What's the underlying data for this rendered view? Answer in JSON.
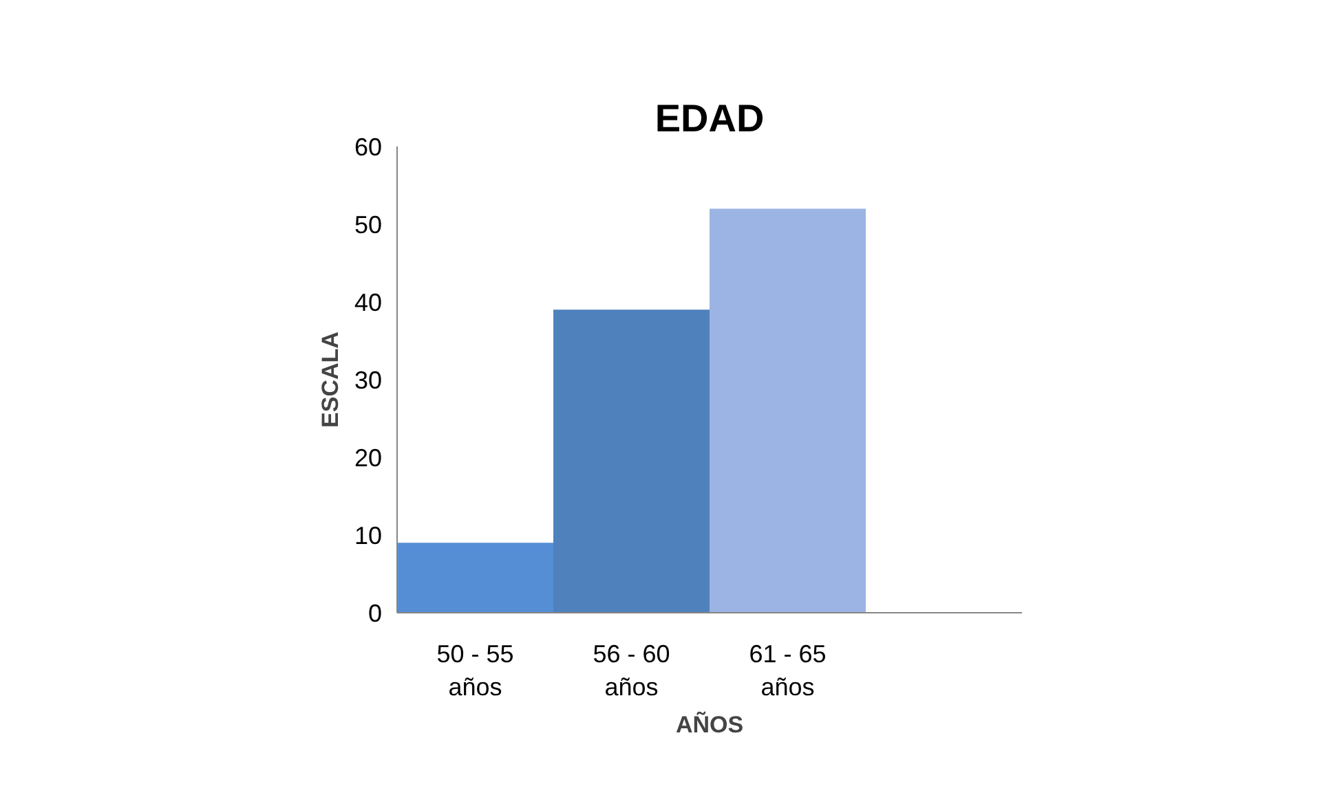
{
  "chart_data": {
    "type": "bar",
    "title": "EDAD",
    "xlabel": "AÑOS",
    "ylabel": "ESCALA",
    "categories": [
      "50 - 55 años",
      "56 - 60 años",
      "61 - 65 años",
      null
    ],
    "values": [
      9,
      39,
      52,
      null
    ],
    "colors": [
      "#558ed5",
      "#4f81bd",
      "#9bb4e3",
      "#9bb4e3"
    ],
    "ylim": [
      0,
      60
    ],
    "yticks": [
      0,
      10,
      20,
      30,
      40,
      50,
      60
    ],
    "grid": false
  }
}
